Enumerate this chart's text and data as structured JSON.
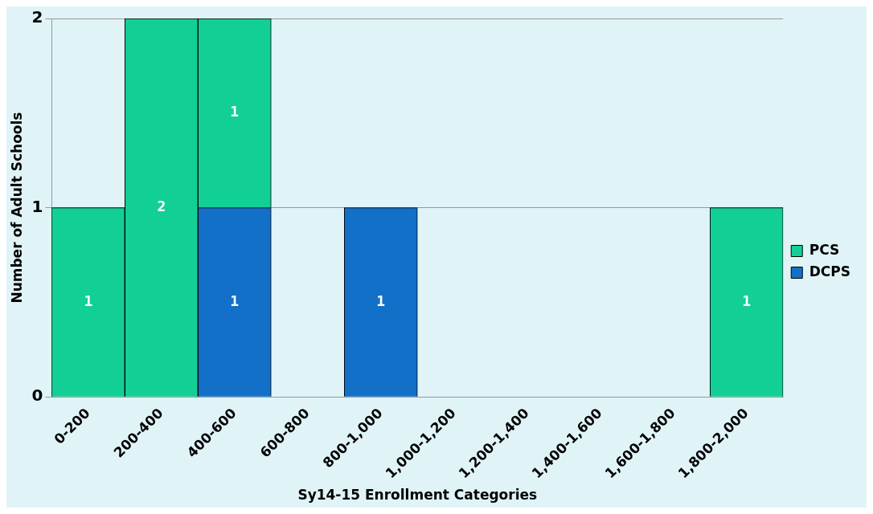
{
  "chart_data": {
    "type": "bar",
    "stacked": true,
    "xlabel": "Sy14-15 Enrollment Categories",
    "ylabel": "Number of Adult Schools",
    "categories": [
      "0-200",
      "200-400",
      "400-600",
      "600-800",
      "800-1,000",
      "1,000-1,200",
      "1,200-1,400",
      "1,400-1,600",
      "1,600-1,800",
      "1,800-2,000"
    ],
    "series": [
      {
        "name": "DCPS",
        "color": "#1270c8",
        "values": [
          null,
          null,
          1,
          null,
          1,
          null,
          null,
          null,
          null,
          null
        ]
      },
      {
        "name": "PCS",
        "color": "#12cf96",
        "values": [
          1,
          2,
          1,
          null,
          null,
          null,
          null,
          null,
          null,
          1
        ]
      }
    ],
    "ylim": [
      0,
      2
    ],
    "yticks": [
      0,
      1,
      2
    ],
    "grid": "y",
    "legend": "right",
    "data_labels": true
  }
}
